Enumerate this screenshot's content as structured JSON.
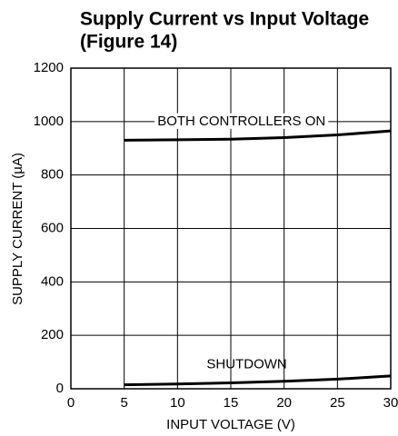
{
  "chart_data": {
    "type": "line",
    "title": "Supply Current vs Input Voltage",
    "subtitle": "(Figure 14)",
    "x_label": "INPUT VOLTAGE (V)",
    "y_label": "SUPPLY CURRENT (µA)",
    "x": [
      5,
      10,
      15,
      20,
      25,
      30
    ],
    "series": [
      {
        "name": "BOTH CONTROLLERS ON",
        "color": "#000000",
        "values": [
          930,
          932,
          934,
          940,
          950,
          965
        ]
      },
      {
        "name": "SHUTDOWN",
        "color": "#000000",
        "values": [
          15,
          18,
          22,
          28,
          36,
          48
        ]
      }
    ],
    "xlim": [
      0,
      30
    ],
    "xticks": [
      0,
      5,
      10,
      15,
      20,
      25,
      30
    ],
    "ylim": [
      0,
      1200
    ],
    "yticks": [
      0,
      200,
      400,
      600,
      800,
      1000,
      1200
    ],
    "grid": true
  }
}
